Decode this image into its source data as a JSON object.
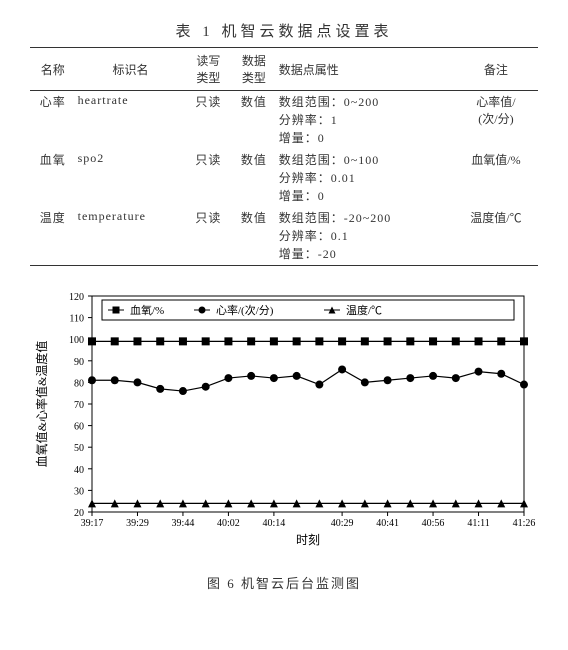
{
  "table": {
    "title": "表 1  机智云数据点设置表",
    "headers": [
      "名称",
      "标识名",
      "读写类型",
      "数据类型",
      "数据点属性",
      "备注"
    ],
    "rows": [
      {
        "name": "心率",
        "ident": "heartrate",
        "rw": "只读",
        "dtype": "数值",
        "attrs": [
          "数组范围：0~200",
          "分辨率：1",
          "增量：0"
        ],
        "note": "心率值/(次/分)"
      },
      {
        "name": "血氧",
        "ident": "spo2",
        "rw": "只读",
        "dtype": "数值",
        "attrs": [
          "数组范围：0~100",
          "分辨率：0.01",
          "增量：0"
        ],
        "note": "血氧值/%"
      },
      {
        "name": "温度",
        "ident": "temperature",
        "rw": "只读",
        "dtype": "数值",
        "attrs": [
          "数组范围：-20~200",
          "分辨率：0.1",
          "增量：-20"
        ],
        "note": "温度值/℃"
      }
    ]
  },
  "chart": {
    "type": "line",
    "title": "图 6  机智云后台监测图",
    "xlabel": "时刻",
    "ylabel": "血氧值&心率值&温度值",
    "ylim": [
      20,
      120
    ],
    "ytick_step": 10,
    "x_categories": [
      "39:17",
      "39:29",
      "39:44",
      "40:02",
      "40:14",
      "40:29",
      "40:41",
      "40:56",
      "41:11",
      "41:26"
    ],
    "n_points": 20,
    "legend": {
      "items": [
        {
          "label": "血氧/%",
          "marker": "square"
        },
        {
          "label": "心率/(次/分)",
          "marker": "circle"
        },
        {
          "label": "温度/℃",
          "marker": "triangle"
        }
      ],
      "border_color": "#000000"
    },
    "series": {
      "spo2": {
        "marker": "square",
        "color": "#000000",
        "values": [
          99,
          99,
          99,
          99,
          99,
          99,
          99,
          99,
          99,
          99,
          99,
          99,
          99,
          99,
          99,
          99,
          99,
          99,
          99,
          99
        ]
      },
      "heart": {
        "marker": "circle",
        "color": "#000000",
        "values": [
          81,
          81,
          80,
          77,
          76,
          78,
          82,
          83,
          82,
          83,
          79,
          86,
          80,
          81,
          82,
          83,
          82,
          85,
          84,
          79
        ]
      },
      "temp": {
        "marker": "triangle",
        "color": "#000000",
        "values": [
          24,
          24,
          24,
          24,
          24,
          24,
          24,
          24,
          24,
          24,
          24,
          24,
          24,
          24,
          24,
          24,
          24,
          24,
          24,
          24
        ]
      }
    },
    "line_width": 1.2,
    "marker_size": 4,
    "background_color": "#ffffff",
    "axis_color": "#000000",
    "ytick_len": 4,
    "label_fontsize": 12,
    "tick_fontsize": 10
  }
}
